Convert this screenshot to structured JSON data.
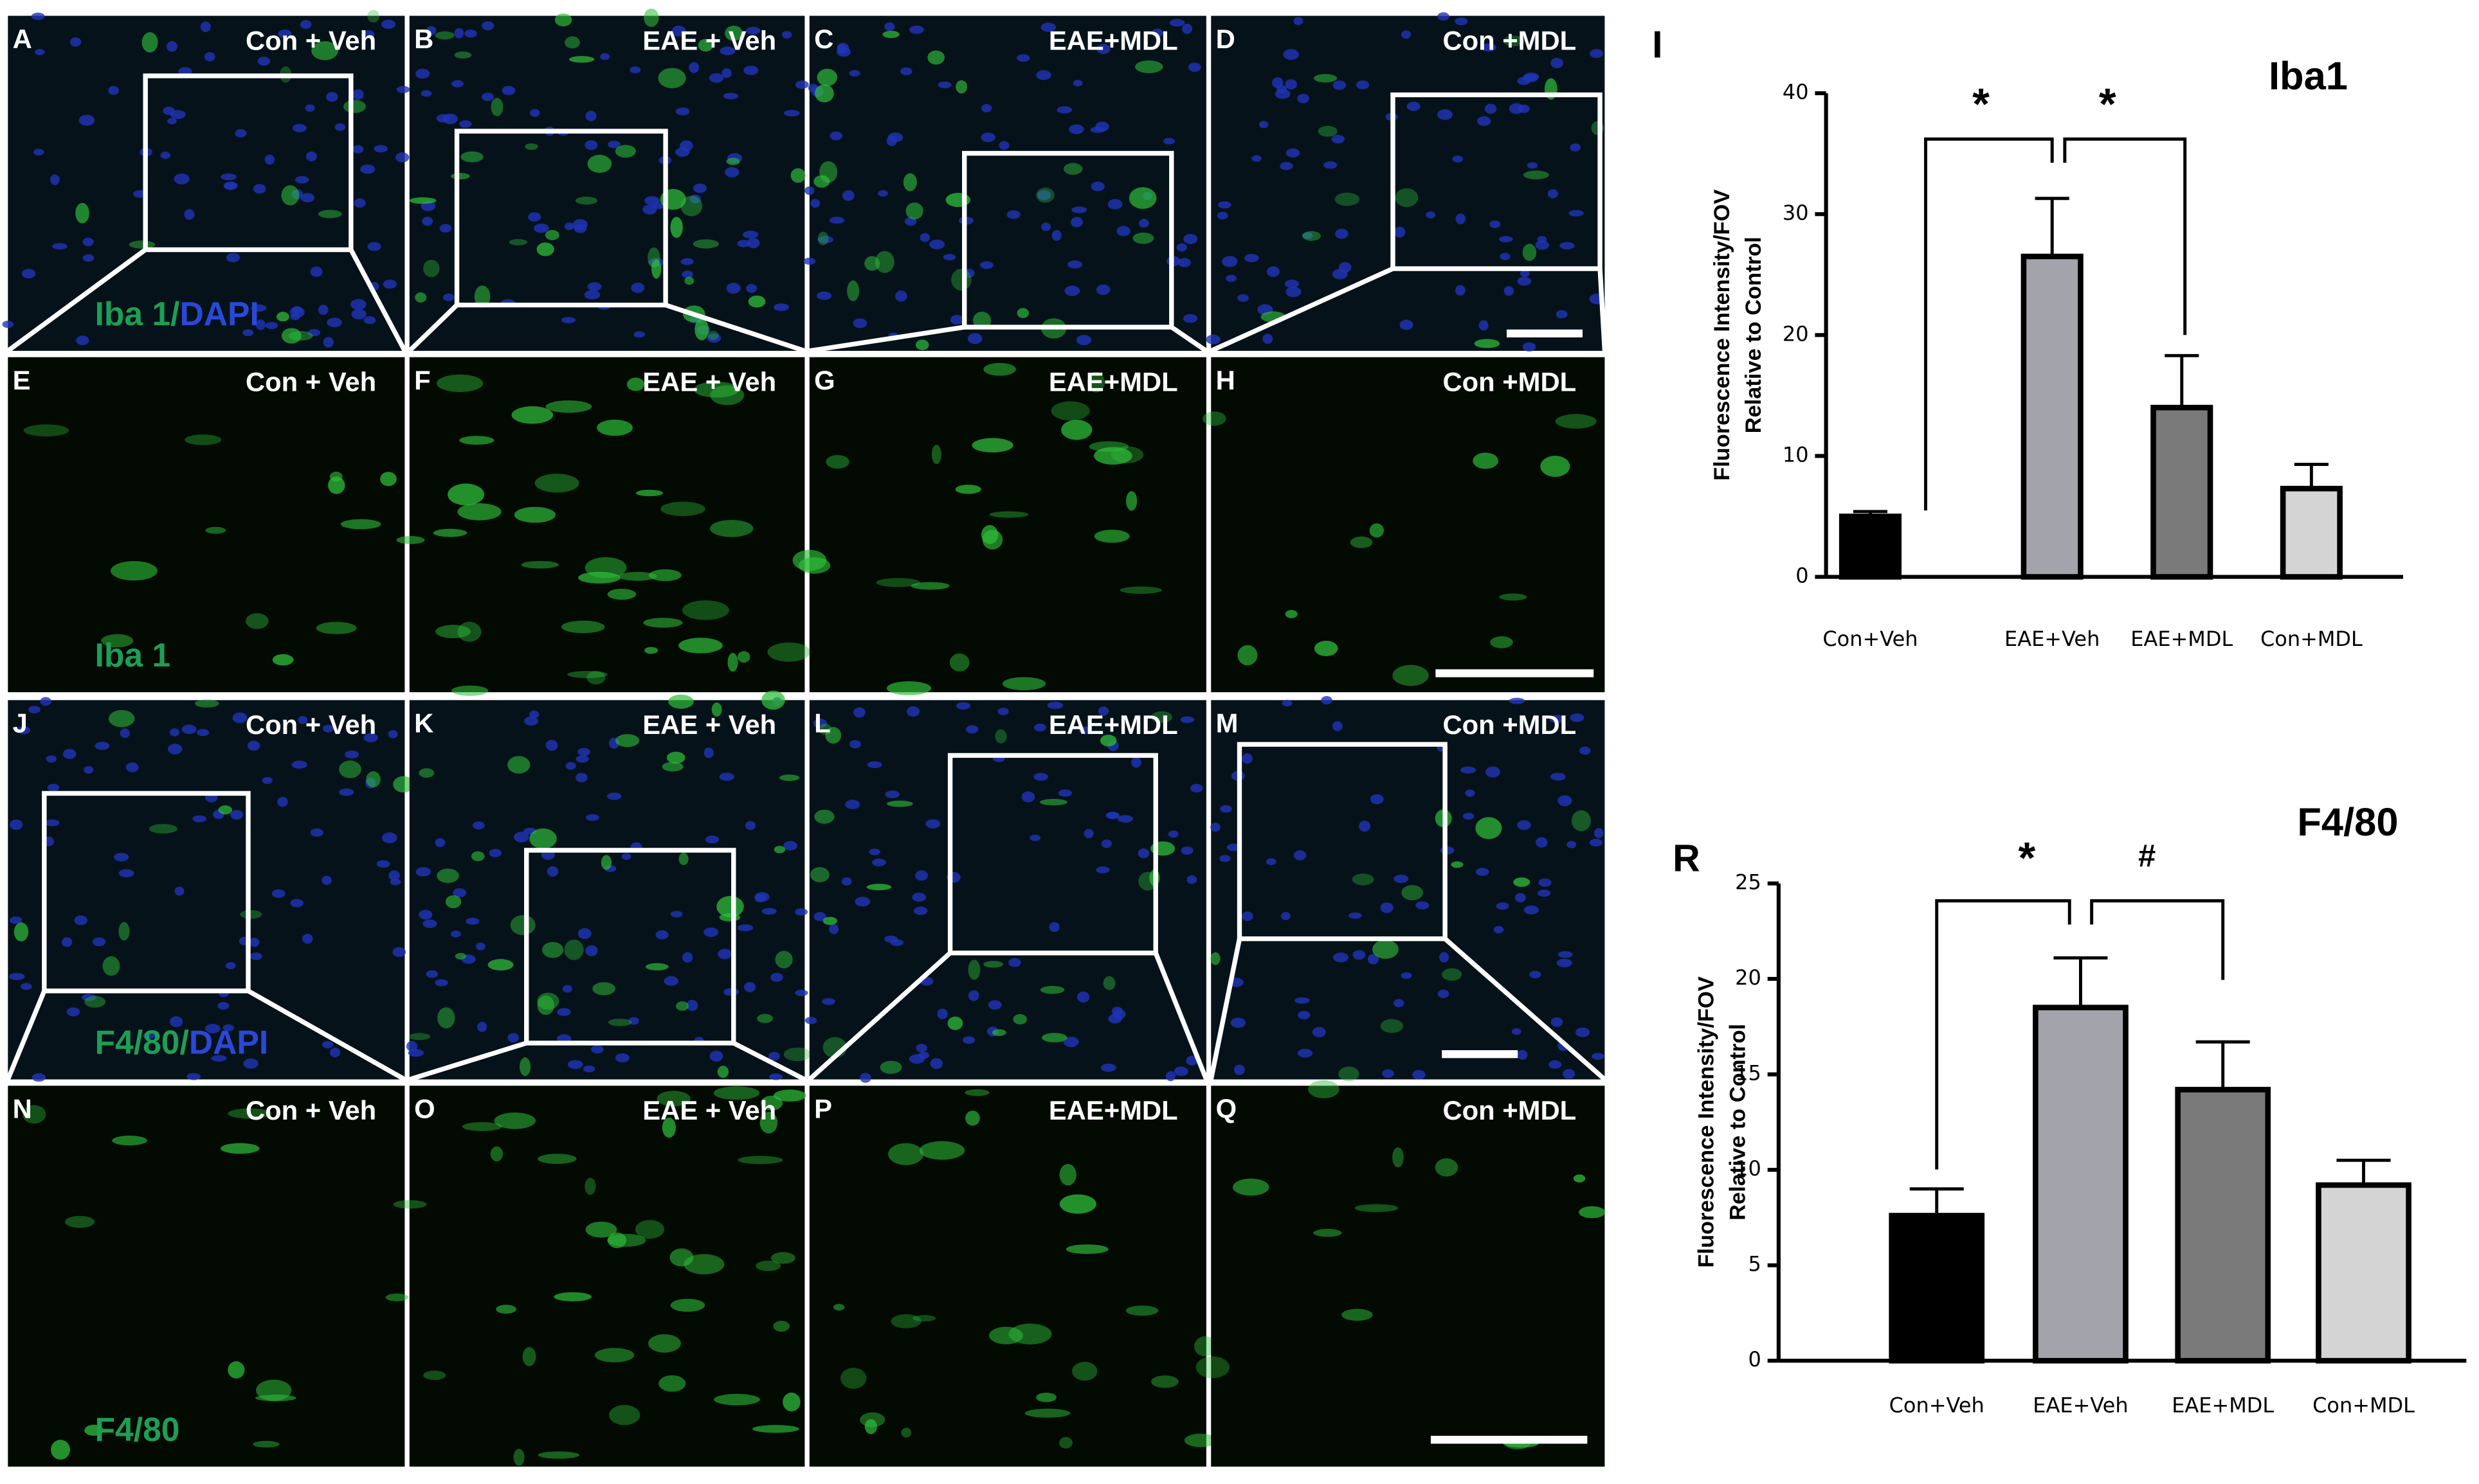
{
  "panels": [
    {
      "letter": "A",
      "label": "Con + Veh",
      "stain": [
        "Iba 1/",
        "DAPI"
      ]
    },
    {
      "letter": "B",
      "label": "EAE + Veh"
    },
    {
      "letter": "C",
      "label": "EAE+MDL"
    },
    {
      "letter": "D",
      "label": "Con +MDL"
    },
    {
      "letter": "E",
      "label": "Con + Veh",
      "stain": [
        "Iba 1"
      ]
    },
    {
      "letter": "F",
      "label": "EAE + Veh"
    },
    {
      "letter": "G",
      "label": "EAE+MDL"
    },
    {
      "letter": "H",
      "label": "Con +MDL"
    },
    {
      "letter": "J",
      "label": "Con + Veh",
      "stain": [
        "F4/80/",
        "DAPI"
      ]
    },
    {
      "letter": "K",
      "label": "EAE + Veh"
    },
    {
      "letter": "L",
      "label": "EAE+MDL"
    },
    {
      "letter": "M",
      "label": "Con +MDL"
    },
    {
      "letter": "N",
      "label": "Con + Veh",
      "stain": [
        "F4/80"
      ]
    },
    {
      "letter": "O",
      "label": "EAE + Veh"
    },
    {
      "letter": "P",
      "label": "EAE+MDL"
    },
    {
      "letter": "Q",
      "label": "Con +MDL"
    }
  ],
  "chart_data": [
    {
      "type": "bar",
      "panel_letter": "I",
      "title": "Iba1",
      "y_label": [
        "Fluorescence Intensity/FOV",
        "Relative to Control"
      ],
      "categories": [
        "Con+Veh",
        "EAE+Veh",
        "EAE+MDL",
        "Con+MDL"
      ],
      "values": [
        5,
        26.5,
        14,
        7.3
      ],
      "errors": [
        0.4,
        4.8,
        4.3,
        2
      ],
      "colors": [
        "#000000",
        "#a3a3ab",
        "#7a7a7a",
        "#d4d4d4"
      ],
      "ylim": [
        0,
        40
      ],
      "yticks": [
        0,
        10,
        20,
        30,
        40
      ],
      "annotations": [
        "*",
        "*"
      ]
    },
    {
      "type": "bar",
      "panel_letter": "R",
      "title": "F4/80",
      "y_label": [
        "Fluorescence Intensity/FOV",
        "Relative to Control"
      ],
      "categories": [
        "Con+Veh",
        "EAE+Veh",
        "EAE+MDL",
        "Con+MDL"
      ],
      "values": [
        7.6,
        18.5,
        14.2,
        9.2
      ],
      "errors": [
        1.4,
        2.6,
        2.5,
        1.3
      ],
      "colors": [
        "#000000",
        "#a3a3ab",
        "#7a7a7a",
        "#d4d4d4"
      ],
      "ylim": [
        0,
        25
      ],
      "yticks": [
        0,
        5,
        10,
        15,
        20,
        25
      ],
      "annotations": [
        "*",
        "#"
      ]
    }
  ]
}
